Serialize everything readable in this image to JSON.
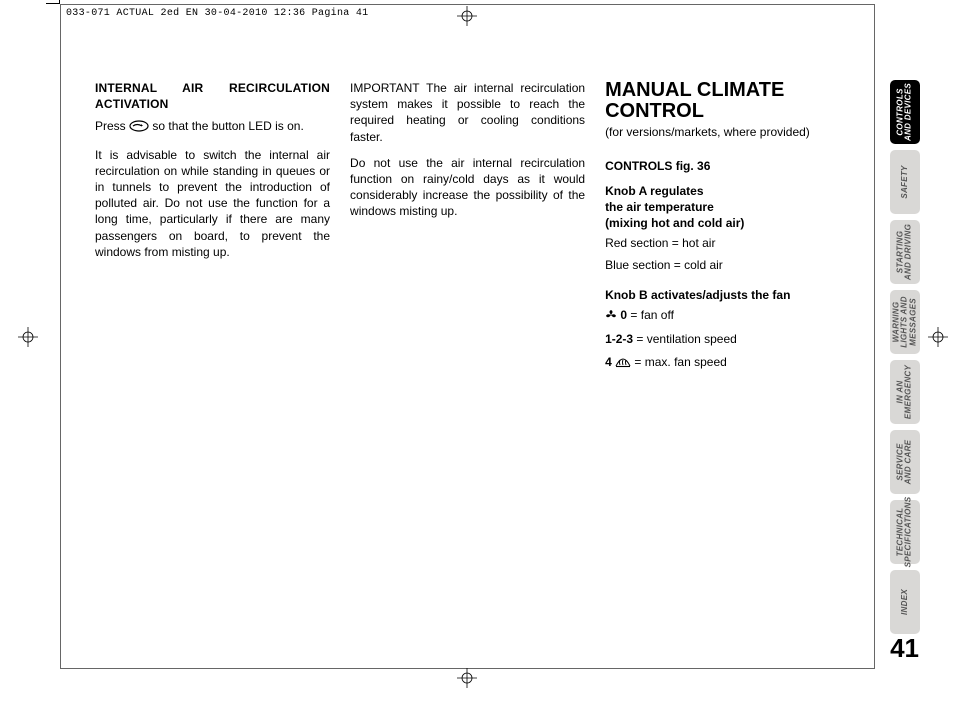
{
  "meta": {
    "job_line": "033-071 ACTUAL 2ed EN  30-04-2010  12:36  Pagina 41"
  },
  "page_number": "41",
  "column1": {
    "heading": "INTERNAL AIR RECIRCULATION ACTIVATION",
    "press_before": "Press ",
    "press_after": " so that the button LED is on.",
    "para2": "It is advisable to switch the internal air recirculation on while standing in queues or in tunnels to prevent the introduction of polluted air. Do not use the function for a long time, particularly if there are many passengers on board, to prevent the windows from misting up."
  },
  "column2": {
    "para1": "IMPORTANT The air internal recirculation system makes it possible to reach the required heating or cooling conditions faster.",
    "para2": "Do not use the air internal recirculation function on rainy/cold days as it would considerably increase the possibility of the windows misting up."
  },
  "column3": {
    "title_line1": "MANUAL CLIMATE",
    "title_line2": "CONTROL",
    "subtitle": "(for versions/markets, where provided)",
    "controls_heading": "CONTROLS fig. 36",
    "knobA_line1": "Knob A regulates",
    "knobA_line2": "the air temperature",
    "knobA_line3": "(mixing hot and cold air)",
    "red": "Red section = hot air",
    "blue": "Blue section = cold air",
    "knobB_heading": "Knob B activates/adjusts the fan",
    "fan0_bold": "0",
    "fan0_rest": " = fan off",
    "fan123_bold": "1-2-3",
    "fan123_rest": " = ventilation speed",
    "fan4_bold": "4 ",
    "fan4_rest": " = max. fan speed"
  },
  "tabs": [
    {
      "label_line1": "CONTROLS",
      "label_line2": "AND DEVICES",
      "active": true
    },
    {
      "label_line1": "SAFETY",
      "label_line2": "",
      "active": false
    },
    {
      "label_line1": "STARTING",
      "label_line2": "AND DRIVING",
      "active": false
    },
    {
      "label_line1": "WARNING",
      "label_line2": "LIGHTS AND",
      "label_line3": "MESSAGES",
      "active": false
    },
    {
      "label_line1": "IN AN",
      "label_line2": "EMERGENCY",
      "active": false
    },
    {
      "label_line1": "SERVICE",
      "label_line2": "AND CARE",
      "active": false
    },
    {
      "label_line1": "TECHNICAL",
      "label_line2": "SPECIFICATIONS",
      "active": false
    },
    {
      "label_line1": "INDEX",
      "label_line2": "",
      "active": false
    }
  ],
  "icons": {
    "recirc": "recirc-icon",
    "fan": "fan-icon",
    "defrost": "defrost-icon"
  },
  "colors": {
    "tab_inactive_bg": "#d9d8d6",
    "tab_active_bg": "#000000",
    "text": "#000000"
  }
}
